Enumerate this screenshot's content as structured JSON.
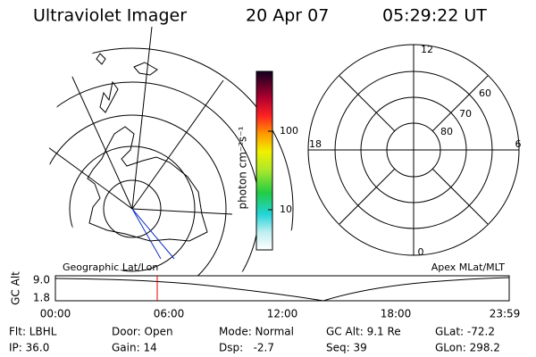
{
  "header": {
    "title": "Ultraviolet Imager",
    "date": "20 Apr 07",
    "time": "05:29:22 UT"
  },
  "colorbar": {
    "unit": "photon cm⁻²s⁻¹",
    "ticks": [
      "100",
      "10"
    ]
  },
  "polar": {
    "mlt_labels": [
      "12",
      "18",
      "6",
      "0"
    ],
    "lat_labels": [
      "60",
      "70",
      "80"
    ]
  },
  "timeline": {
    "left_title": "Geographic Lat/Lon",
    "right_title": "Apex MLat/MLT",
    "y_label": "GC Alt",
    "y_ticks": [
      "9.0",
      "1.8"
    ],
    "x_ticks": [
      "00:00",
      "06:00",
      "12:00",
      "18:00",
      "23:59"
    ]
  },
  "info": {
    "rows": [
      [
        "Flt: LBHL",
        "Door: Open",
        "Mode: Normal",
        "GC Alt: 9.1 Re",
        "GLat: -72.2"
      ],
      [
        "IP: 36.0",
        "Gain: 14",
        "Dsp:   -2.7",
        "Seq: 39",
        "GLon: 298.2"
      ]
    ]
  }
}
